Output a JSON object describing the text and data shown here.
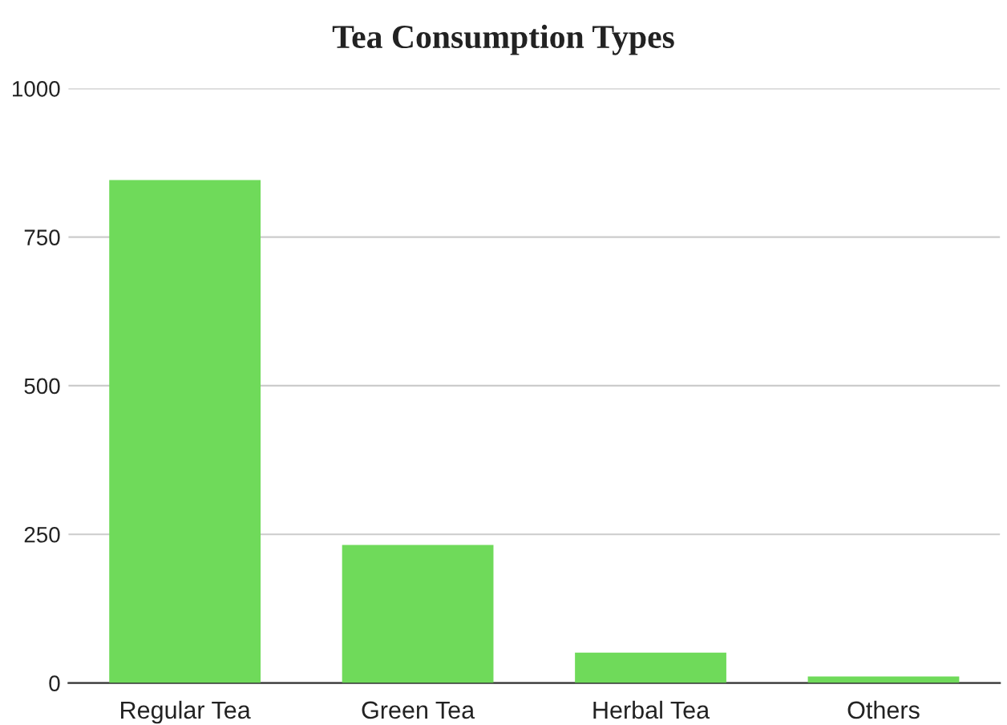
{
  "chart_data": {
    "type": "bar",
    "title": "Tea Consumption Types",
    "categories": [
      "Regular Tea",
      "Green Tea",
      "Herbal Tea",
      "Others"
    ],
    "values": [
      846,
      232,
      51,
      11
    ],
    "color": "#6fda5a",
    "ylim": [
      0,
      1000
    ],
    "yticks": [
      0,
      250,
      500,
      750,
      1000
    ],
    "grid": "y",
    "legend": false
  }
}
